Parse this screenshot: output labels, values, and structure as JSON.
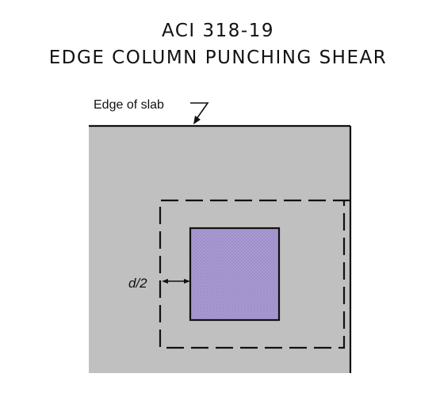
{
  "title": {
    "line1": "ACI 318-19",
    "line2": "EDGE COLUMN PUNCHING SHEAR"
  },
  "labels": {
    "edge_of_slab": "Edge of slab",
    "critical_offset": "d/2"
  },
  "colors": {
    "slab_fill": "#c0c0c0",
    "column_fill": "#a99ad4",
    "line": "#111111",
    "background": "#ffffff"
  }
}
